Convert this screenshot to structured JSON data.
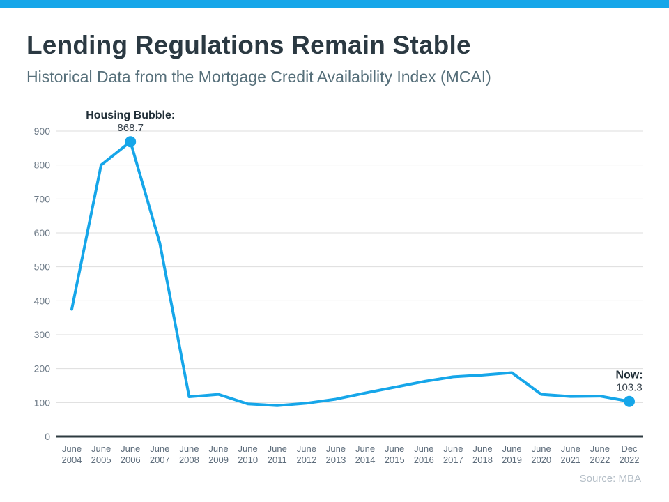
{
  "page": {
    "title": "Lending Regulations Remain Stable",
    "subtitle": "Historical Data from the Mortgage Credit Availability Index (MCAI)",
    "source": "Source: MBA"
  },
  "colors": {
    "accent": "#16a6e9",
    "title": "#2b3942",
    "subtitle": "#566f7a",
    "grid": "#dddddd",
    "axis": "#2e3b40",
    "tick_label": "#6d7a87",
    "tick_label2": "#5d6c7b",
    "annotation": "#212f38",
    "annotation2": "#37424c",
    "source": "#b4bec7"
  },
  "chart_data": {
    "type": "line",
    "title": "",
    "xlabel": "",
    "ylabel": "",
    "categories": [
      "June 2004",
      "June 2005",
      "June 2006",
      "June 2007",
      "June 2008",
      "June 2009",
      "June 2010",
      "June 2011",
      "June 2012",
      "June 2013",
      "June 2014",
      "June 2015",
      "June 2016",
      "June 2017",
      "June 2018",
      "June 2019",
      "June 2020",
      "June 2021",
      "June 2022",
      "Dec 2022"
    ],
    "values": [
      375,
      800,
      868.7,
      570,
      117,
      124,
      96,
      91,
      98,
      110,
      128,
      145,
      162,
      176,
      181,
      188,
      124,
      118,
      119,
      103.3
    ],
    "ylim": [
      0,
      900
    ],
    "ytick_interval": 100,
    "grid": true,
    "legend": false,
    "line_color": "#16a6e9",
    "markers": [
      2,
      19
    ],
    "annotations": [
      {
        "index": 2,
        "label": "Housing Bubble:",
        "value": "868.7"
      },
      {
        "index": 19,
        "label": "Now:",
        "value": "103.3"
      }
    ]
  }
}
